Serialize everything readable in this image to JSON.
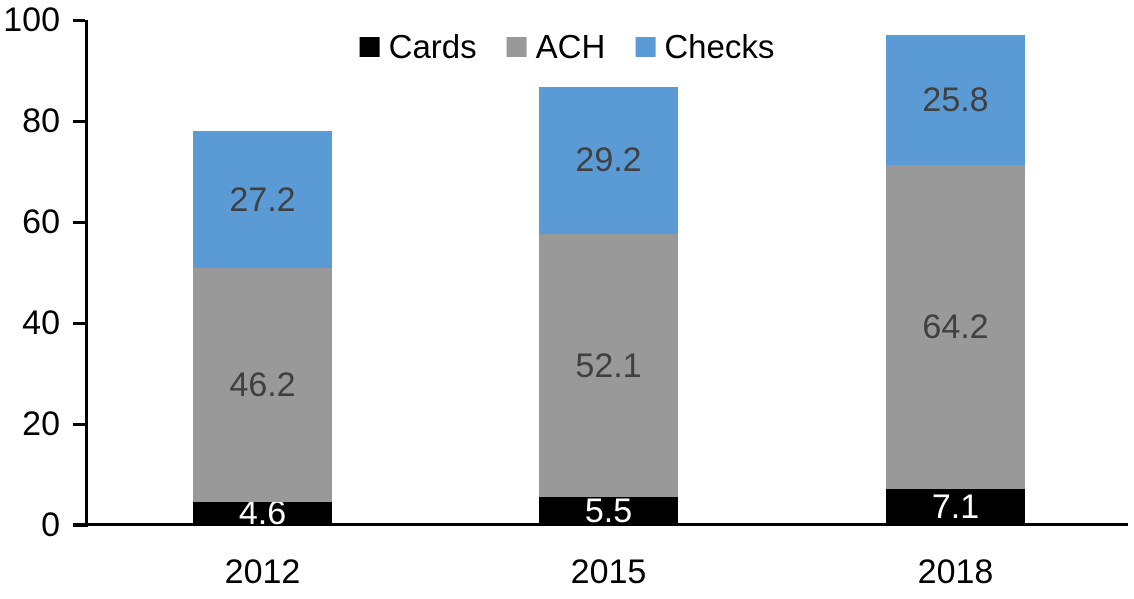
{
  "chart_data": {
    "type": "bar",
    "stacked": true,
    "title": "",
    "xlabel": "",
    "ylabel": "",
    "categories": [
      "2012",
      "2015",
      "2018"
    ],
    "series": [
      {
        "name": "Cards",
        "color": "#000000",
        "label_color": "#ffffff",
        "values": [
          4.6,
          5.5,
          7.1
        ]
      },
      {
        "name": "ACH",
        "color": "#999999",
        "label_color": "#404040",
        "values": [
          46.2,
          52.1,
          64.2
        ]
      },
      {
        "name": "Checks",
        "color": "#5b9bd5",
        "label_color": "#404040",
        "values": [
          27.2,
          29.2,
          25.8
        ]
      }
    ],
    "ylim": [
      0,
      100
    ],
    "yticks": [
      0,
      20,
      40,
      60,
      80,
      100
    ],
    "legend_position": "top-center",
    "grid": false,
    "axis_color": "#000000",
    "background_color": "#ffffff"
  }
}
